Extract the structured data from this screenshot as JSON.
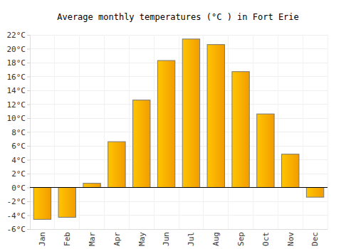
{
  "chart_data": {
    "type": "bar",
    "title": "Average monthly temperatures (°C ) in Fort Erie",
    "categories": [
      "Jan",
      "Feb",
      "Mar",
      "Apr",
      "May",
      "Jun",
      "Jul",
      "Aug",
      "Sep",
      "Oct",
      "Nov",
      "Dec"
    ],
    "values": [
      -4.6,
      -4.3,
      0.6,
      6.6,
      12.6,
      18.3,
      21.4,
      20.6,
      16.7,
      10.6,
      4.8,
      -1.4
    ],
    "color": "#ffa500",
    "ylim": [
      -6,
      22
    ],
    "yticks": [
      {
        "value": -6,
        "label": "-6°C"
      },
      {
        "value": -4,
        "label": "-4°C"
      },
      {
        "value": -2,
        "label": "-2°C"
      },
      {
        "value": 0,
        "label": "0°C"
      },
      {
        "value": 2,
        "label": "2°C"
      },
      {
        "value": 4,
        "label": "4°C"
      },
      {
        "value": 6,
        "label": "6°C"
      },
      {
        "value": 8,
        "label": "8°C"
      },
      {
        "value": 10,
        "label": "10°C"
      },
      {
        "value": 12,
        "label": "12°C"
      },
      {
        "value": 14,
        "label": "14°C"
      },
      {
        "value": 16,
        "label": "16°C"
      },
      {
        "value": 18,
        "label": "18°C"
      },
      {
        "value": 20,
        "label": "20°C"
      },
      {
        "value": 22,
        "label": "22°C"
      }
    ],
    "grid": true
  }
}
